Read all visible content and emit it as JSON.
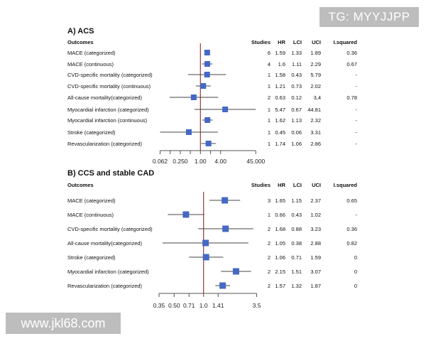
{
  "watermarks": {
    "top": "TG: MYYJJPP",
    "bottom": "www.jkl68.com"
  },
  "colors": {
    "marker": "#4468c4",
    "ci_line": "#444444",
    "ref_line": "#9b3535",
    "axis": "#555555"
  },
  "chart_data": [
    {
      "type": "forest",
      "title": "A) ACS",
      "scale": "log",
      "reference_line": 1,
      "xlim": [
        0.0625,
        45
      ],
      "xticks": [
        0.0625,
        0.125,
        0.25,
        0.5,
        1,
        2,
        4,
        45
      ],
      "xtick_labels": [
        "0.062",
        "",
        "0.250",
        "",
        "1.00",
        "",
        "4.00",
        "45.000"
      ],
      "columns": [
        "Outcomes",
        "Studies",
        "HR",
        "LCI",
        "UCI",
        "I.squared"
      ],
      "rows": [
        {
          "outcome": "MACE (categorized)",
          "studies": "6",
          "hr": "1.59",
          "lci": "1.33",
          "uci": "1.89",
          "i2": "0.36"
        },
        {
          "outcome": "MACE (continuous)",
          "studies": "4",
          "hr": "1.6",
          "lci": "1.11",
          "uci": "2.29",
          "i2": "0.67"
        },
        {
          "outcome": "CVD-specific mortality (categorized)",
          "studies": "1",
          "hr": "1.58",
          "lci": "0.43",
          "uci": "5.79",
          "i2": "-"
        },
        {
          "outcome": "CVD-specific mortality (continuous)",
          "studies": "1",
          "hr": "1.21",
          "lci": "0.73",
          "uci": "2.02",
          "i2": "-"
        },
        {
          "outcome": "All-cause mortality(categorized)",
          "studies": "2",
          "hr": "0.63",
          "lci": "0.12",
          "uci": "3,4",
          "i2": "0.78"
        },
        {
          "outcome": "Myocardial infarction (categorized)",
          "studies": "1",
          "hr": "5.47",
          "lci": "0.67",
          "uci": "44.81",
          "i2": "-"
        },
        {
          "outcome": "Myocardial infarction (continuous)",
          "studies": "1",
          "hr": "1.62",
          "lci": "1.13",
          "uci": "2.32",
          "i2": "-"
        },
        {
          "outcome": "Stroke (categorized)",
          "studies": "1",
          "hr": "0.45",
          "lci": "0.06",
          "uci": "3.31",
          "i2": "-"
        },
        {
          "outcome": "Revascularization (categorized)",
          "studies": "1",
          "hr": "1.74",
          "lci": "1.06",
          "uci": "2.86",
          "i2": "-"
        }
      ]
    },
    {
      "type": "forest",
      "title": "B) CCS and stable CAD",
      "scale": "log",
      "reference_line": 1,
      "xlim": [
        0.35,
        3.5
      ],
      "xticks": [
        0.35,
        0.5,
        0.71,
        1.0,
        1.41,
        3.5
      ],
      "xtick_labels": [
        "0.35",
        "0.50",
        "0.71",
        "1.0",
        "1.41",
        "3.5"
      ],
      "columns": [
        "Outcomes",
        "Studies",
        "HR",
        "LCI",
        "UCI",
        "I.squared"
      ],
      "rows": [
        {
          "outcome": "MACE (categorized)",
          "studies": "3",
          "hr": "1.65",
          "lci": "1.15",
          "uci": "2.37",
          "i2": "0.65"
        },
        {
          "outcome": "MACE (continuous)",
          "studies": "1",
          "hr": "0.66",
          "lci": "0.43",
          "uci": "1.02",
          "i2": "-"
        },
        {
          "outcome": "CVD-specific mortality (categorized)",
          "studies": "2",
          "hr": "1.68",
          "lci": "0.88",
          "uci": "3.23",
          "i2": "0.36"
        },
        {
          "outcome": "All-cause mortality(categorized)",
          "studies": "2",
          "hr": "1.05",
          "lci": "0.38",
          "uci": "2.88",
          "i2": "0.82"
        },
        {
          "outcome": "Stroke (categorized)",
          "studies": "2",
          "hr": "1.06",
          "lci": "0.71",
          "uci": "1.59",
          "i2": "0"
        },
        {
          "outcome": "Myocardial infarction (categorized)",
          "studies": "2",
          "hr": "2.15",
          "lci": "1.51",
          "uci": "3.07",
          "i2": "0"
        },
        {
          "outcome": "Revascularization (categorized)",
          "studies": "2",
          "hr": "1.57",
          "lci": "1.32",
          "uci": "1.87",
          "i2": "0"
        }
      ]
    }
  ]
}
